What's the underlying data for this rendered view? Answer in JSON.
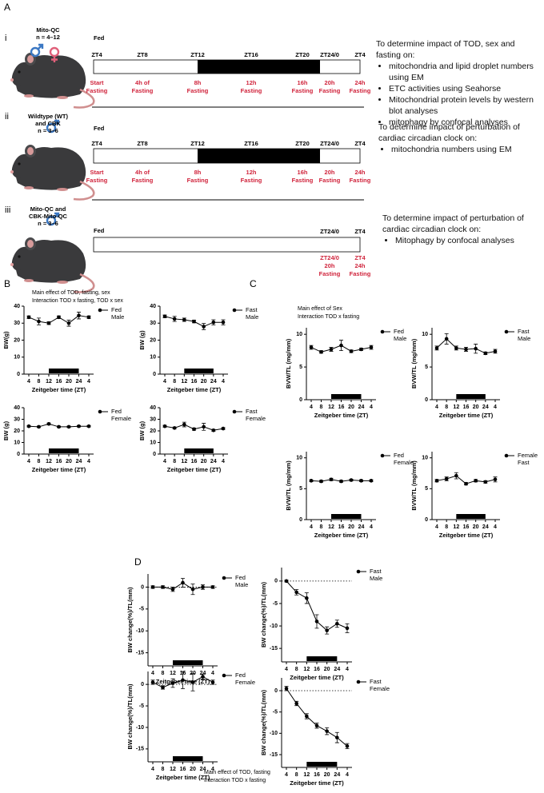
{
  "panel_labels": [
    "A",
    "B",
    "C",
    "D"
  ],
  "panel_a": {
    "rows": [
      {
        "roman": "i",
        "model": [
          "Mito-QC"
        ],
        "n": "n = 4–12",
        "fed": "Fed",
        "zt_labels": [
          "ZT4",
          "ZT8",
          "ZT12",
          "ZT16",
          "ZT20",
          "ZT24/0",
          "ZT4"
        ],
        "fasting_labels": [
          [
            "Start",
            "Fasting"
          ],
          [
            "4h of",
            "Fasting"
          ],
          [
            "8h",
            "Fasting"
          ],
          [
            "12h",
            "Fasting"
          ],
          [
            "16h",
            "Fasting"
          ],
          [
            "20h",
            "Fasting"
          ],
          [
            "24h",
            "Fasting"
          ]
        ],
        "aim_intro": "To determine impact of TOD, sex and fasting on:",
        "aims": [
          "mitochondria and lipid droplet numbers using EM",
          "ETC activities using Seahorse",
          "Mitochondrial protein levels by western blot analyses",
          "mitophagy by confocal analyses"
        ]
      },
      {
        "roman": "ii",
        "model": [
          "Wildtype (WT)",
          "and CBK"
        ],
        "n": "n = 3–6",
        "fed": "Fed",
        "zt_labels": [
          "ZT4",
          "ZT8",
          "ZT12",
          "ZT16",
          "ZT20",
          "ZT24/0",
          "ZT4"
        ],
        "fasting_labels": [
          [
            "Start",
            "Fasting"
          ],
          [
            "4h of",
            "Fasting"
          ],
          [
            "8h",
            "Fasting"
          ],
          [
            "12h",
            "Fasting"
          ],
          [
            "16h",
            "Fasting"
          ],
          [
            "20h",
            "Fasting"
          ],
          [
            "24h",
            "Fasting"
          ]
        ],
        "aim_intro": "To determine impact of perturbation of cardiac circadian clock on:",
        "aims": [
          "mitochondria numbers using EM"
        ]
      },
      {
        "roman": "iii",
        "model": [
          "Mito-QC and",
          "CBK-Mito-QC"
        ],
        "n": "n = 3–6",
        "fed": "Fed",
        "zt_labels": [
          "ZT24/0",
          "ZT4"
        ],
        "fasting_labels": [
          [
            "ZT24/0",
            "20h",
            "Fasting"
          ],
          [
            "ZT4",
            "24h",
            "Fasting"
          ]
        ],
        "aim_intro": "To determine impact of perturbation of cardiac circadian clock on:",
        "aims": [
          "Mitophagy by confocal analyses"
        ]
      }
    ]
  },
  "panel_notes": {
    "B": [
      "Main effect of TOD, fasting, sex",
      "Interaction TOD x fasting, TOD x sex"
    ],
    "C": [
      "Main effect of Sex",
      "Interaction TOD x fasting"
    ],
    "D": [
      "Main effect of TOD, fasting",
      "Interaction TOD x fasting"
    ]
  },
  "chart_data": [
    {
      "type": "line",
      "ylabel": "BW(g)",
      "xlabel": "Zeitgeber time (ZT)",
      "categories": [
        "4",
        "8",
        "12",
        "16",
        "20",
        "24",
        "4"
      ],
      "series": [
        {
          "name": "Fed Male",
          "color": "#000000",
          "values": [
            33.5,
            31,
            30,
            33.5,
            30,
            34.5,
            33.5
          ],
          "errors": [
            0.8,
            2,
            0.8,
            0.8,
            1.8,
            2,
            0.8
          ]
        }
      ],
      "ylim": [
        0,
        40
      ],
      "yticks": [
        0,
        10,
        20,
        30,
        40
      ],
      "legend": "right"
    },
    {
      "type": "line",
      "ylabel": "BW (g)",
      "xlabel": "Zeitgeber time (ZT)",
      "categories": [
        "4",
        "8",
        "12",
        "16",
        "20",
        "24",
        "4"
      ],
      "series": [
        {
          "name": "Fast Male",
          "color": "#000000",
          "values": [
            34,
            32.5,
            32,
            31,
            28,
            30.5,
            30.5
          ],
          "errors": [
            0.8,
            1.5,
            1,
            0.8,
            1.8,
            1.5,
            1.5
          ]
        }
      ],
      "ylim": [
        0,
        40
      ],
      "yticks": [
        0,
        10,
        20,
        30,
        40
      ],
      "legend": "right"
    },
    {
      "type": "line",
      "ylabel": "BW (g)",
      "xlabel": "Zeitgeber time (ZT)",
      "categories": [
        "4",
        "8",
        "12",
        "16",
        "20",
        "24",
        "4"
      ],
      "series": [
        {
          "name": "Fed Female",
          "color": "#000000",
          "values": [
            24,
            23.5,
            26,
            23.5,
            23.5,
            24,
            24
          ],
          "errors": [
            0.6,
            0.6,
            0.8,
            0.6,
            0.6,
            0.6,
            0.6
          ]
        }
      ],
      "ylim": [
        0,
        40
      ],
      "yticks": [
        0,
        10,
        20,
        30,
        40
      ],
      "legend": "right"
    },
    {
      "type": "line",
      "ylabel": "BW (g)",
      "xlabel": "Zeitgeber time (ZT)",
      "categories": [
        "4",
        "8",
        "12",
        "16",
        "20",
        "24",
        "4"
      ],
      "series": [
        {
          "name": "Fast Female",
          "color": "#000000",
          "values": [
            24,
            22.5,
            25.5,
            21.5,
            23.5,
            20.5,
            22
          ],
          "errors": [
            0.8,
            0.8,
            2,
            1,
            3,
            0.8,
            0.8
          ]
        }
      ],
      "ylim": [
        0,
        40
      ],
      "yticks": [
        0,
        10,
        20,
        30,
        40
      ],
      "legend": "right"
    },
    {
      "type": "line",
      "ylabel": "BVW/TL (mg/mm)",
      "xlabel": "Zeitgeber time (ZT)",
      "categories": [
        "4",
        "8",
        "12",
        "16",
        "20",
        "24",
        "4"
      ],
      "series": [
        {
          "name": "Fed Male",
          "color": "#000000",
          "values": [
            8,
            7.3,
            7.7,
            8.3,
            7.4,
            7.7,
            8
          ],
          "errors": [
            0.3,
            0.2,
            0.3,
            0.8,
            0.2,
            0.2,
            0.3
          ]
        }
      ],
      "ylim": [
        0,
        11
      ],
      "yticks": [
        0,
        5,
        10
      ],
      "legend": "right"
    },
    {
      "type": "line",
      "ylabel": "BVW/TL (mg/mm)",
      "xlabel": "Zeitgeber time (ZT)",
      "categories": [
        "4",
        "8",
        "12",
        "16",
        "20",
        "24",
        "4"
      ],
      "series": [
        {
          "name": "Fast Male",
          "color": "#000000",
          "values": [
            7.9,
            9.3,
            7.9,
            7.7,
            7.8,
            7.1,
            7.4
          ],
          "errors": [
            0.3,
            0.8,
            0.3,
            0.3,
            0.7,
            0.2,
            0.3
          ]
        }
      ],
      "ylim": [
        0,
        11
      ],
      "yticks": [
        0,
        5,
        10
      ],
      "legend": "right"
    },
    {
      "type": "line",
      "ylabel": "BVW/TL (mg/mm)",
      "xlabel": "Zeitgeber time (ZT)",
      "categories": [
        "4",
        "8",
        "12",
        "16",
        "20",
        "24",
        "4"
      ],
      "series": [
        {
          "name": "Fed Female",
          "color": "#000000",
          "values": [
            6.3,
            6.2,
            6.5,
            6.2,
            6.4,
            6.3,
            6.3
          ],
          "errors": [
            0.15,
            0.15,
            0.2,
            0.15,
            0.15,
            0.15,
            0.15
          ]
        }
      ],
      "ylim": [
        0,
        11
      ],
      "yticks": [
        0,
        5,
        10
      ],
      "legend": "right"
    },
    {
      "type": "line",
      "ylabel": "BVW/TL (mg/mm)",
      "xlabel": "Zeitgeber time (ZT)",
      "categories": [
        "4",
        "8",
        "12",
        "16",
        "20",
        "24",
        "4"
      ],
      "series": [
        {
          "name": "Female Fast",
          "color": "#000000",
          "values": [
            6.3,
            6.6,
            7.1,
            5.8,
            6.3,
            6.1,
            6.5
          ],
          "errors": [
            0.2,
            0.3,
            0.5,
            0.2,
            0.2,
            0.2,
            0.4
          ]
        }
      ],
      "ylim": [
        0,
        11
      ],
      "yticks": [
        0,
        5,
        10
      ],
      "legend": "right"
    },
    {
      "type": "line",
      "ylabel": "BW change(%)/TL(mm)",
      "xlabel": "Zeitgeber time (ZT)",
      "categories": [
        "4",
        "8",
        "12",
        "16",
        "20",
        "24",
        "4"
      ],
      "series": [
        {
          "name": "Fed Male",
          "color": "#000000",
          "values": [
            0,
            0,
            -0.5,
            1,
            -0.5,
            0,
            0
          ],
          "errors": [
            0.3,
            0.3,
            0.5,
            1,
            1.2,
            0.5,
            0.3
          ]
        }
      ],
      "ylim": [
        -18,
        3
      ],
      "yticks": [
        0,
        -5,
        -10,
        -15
      ],
      "hline": 0,
      "legend": "right"
    },
    {
      "type": "line",
      "ylabel": "BW change(%)/TL(mm)",
      "xlabel": "Zeitgeber time (ZT)",
      "categories": [
        "4",
        "8",
        "12",
        "16",
        "20",
        "24",
        "4"
      ],
      "series": [
        {
          "name": "Fast Male",
          "color": "#000000",
          "values": [
            0,
            -2.5,
            -3.8,
            -9,
            -11,
            -9.5,
            -10.5
          ],
          "errors": [
            0.2,
            0.6,
            1.2,
            1.5,
            0.8,
            0.8,
            1
          ]
        }
      ],
      "ylim": [
        -18,
        3
      ],
      "yticks": [
        0,
        -5,
        -10,
        -15
      ],
      "hline": 0,
      "legend": "right"
    },
    {
      "type": "line",
      "ylabel": "BW change(%)/TL(mm)",
      "xlabel": "Zeitgeber time (ZT)",
      "categories": [
        "4",
        "8",
        "12",
        "16",
        "20",
        "24",
        "4"
      ],
      "series": [
        {
          "name": "Fed Female",
          "color": "#000000",
          "values": [
            0.5,
            -0.7,
            0.3,
            1,
            0.5,
            1.8,
            0.5
          ],
          "errors": [
            0.5,
            0.4,
            1,
            2,
            2,
            0.6,
            0.5
          ]
        }
      ],
      "ylim": [
        -18,
        3
      ],
      "yticks": [
        0,
        -5,
        -10,
        -15
      ],
      "hline": 0,
      "legend": "right"
    },
    {
      "type": "line",
      "ylabel": "BW change(%)/TL(mm)",
      "xlabel": "Zeitgeber time (ZT)",
      "categories": [
        "4",
        "8",
        "12",
        "16",
        "20",
        "24",
        "4"
      ],
      "series": [
        {
          "name": "Fast Female",
          "color": "#000000",
          "values": [
            0.5,
            -3,
            -6,
            -8.2,
            -9.5,
            -11,
            -13
          ],
          "errors": [
            0.5,
            0.5,
            0.6,
            0.6,
            0.8,
            1.2,
            0.6
          ]
        }
      ],
      "ylim": [
        -18,
        3
      ],
      "yticks": [
        0,
        -5,
        -10,
        -15
      ],
      "hline": 0,
      "legend": "right"
    }
  ]
}
